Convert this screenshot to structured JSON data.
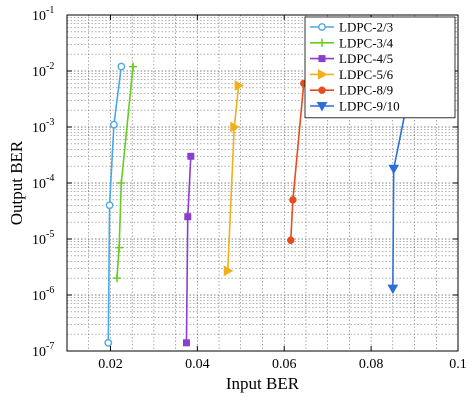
{
  "chart_data": {
    "type": "line",
    "title": "",
    "xlabel": "Input BER",
    "ylabel": "Output BER",
    "xlim": [
      0.01,
      0.1
    ],
    "ylim_exp": [
      -7,
      -1
    ],
    "yscale": "log",
    "grid": true,
    "legend_position": "top-right",
    "x_ticks": [
      {
        "value": 0.02,
        "label": "0.02"
      },
      {
        "value": 0.04,
        "label": "0.04"
      },
      {
        "value": 0.06,
        "label": "0.06"
      },
      {
        "value": 0.08,
        "label": "0.08"
      },
      {
        "value": 0.1,
        "label": "0.1"
      }
    ],
    "y_ticks": [
      {
        "exp": -7,
        "base": "10",
        "sup": "-7"
      },
      {
        "exp": -6,
        "base": "10",
        "sup": "-6"
      },
      {
        "exp": -5,
        "base": "10",
        "sup": "-5"
      },
      {
        "exp": -4,
        "base": "10",
        "sup": "-4"
      },
      {
        "exp": -3,
        "base": "10",
        "sup": "-3"
      },
      {
        "exp": -2,
        "base": "10",
        "sup": "-2"
      },
      {
        "exp": -1,
        "base": "10",
        "sup": "-1"
      }
    ],
    "series": [
      {
        "name": "LDPC-2/3",
        "color": "#4aa8e8",
        "marker": "circle",
        "x": [
          0.0195,
          0.0198,
          0.0208,
          0.0225
        ],
        "y": [
          1.4e-07,
          4e-05,
          0.0011,
          0.012
        ]
      },
      {
        "name": "LDPC-3/4",
        "color": "#66cc22",
        "marker": "plus",
        "x": [
          0.0215,
          0.022,
          0.0225,
          0.0252
        ],
        "y": [
          2e-06,
          7e-06,
          0.0001,
          0.012
        ]
      },
      {
        "name": "LDPC-4/5",
        "color": "#8b3fcc",
        "marker": "square",
        "x": [
          0.0375,
          0.0378,
          0.0385
        ],
        "y": [
          1.4e-07,
          2.5e-05,
          0.0003
        ]
      },
      {
        "name": "LDPC-5/6",
        "color": "#f0b01c",
        "marker": "triangle-right",
        "x": [
          0.047,
          0.0485,
          0.0495
        ],
        "y": [
          2.7e-06,
          0.001,
          0.0055
        ]
      },
      {
        "name": "LDPC-8/9",
        "color": "#e54d1e",
        "marker": "dot",
        "x": [
          0.0615,
          0.062,
          0.0645
        ],
        "y": [
          9.5e-06,
          5e-05,
          0.006
        ]
      },
      {
        "name": "LDPC-9/10",
        "color": "#2d6fd8",
        "marker": "triangle-down",
        "x": [
          0.085,
          0.0852,
          0.0915
        ],
        "y": [
          1.3e-06,
          0.00018,
          0.045
        ]
      }
    ]
  }
}
